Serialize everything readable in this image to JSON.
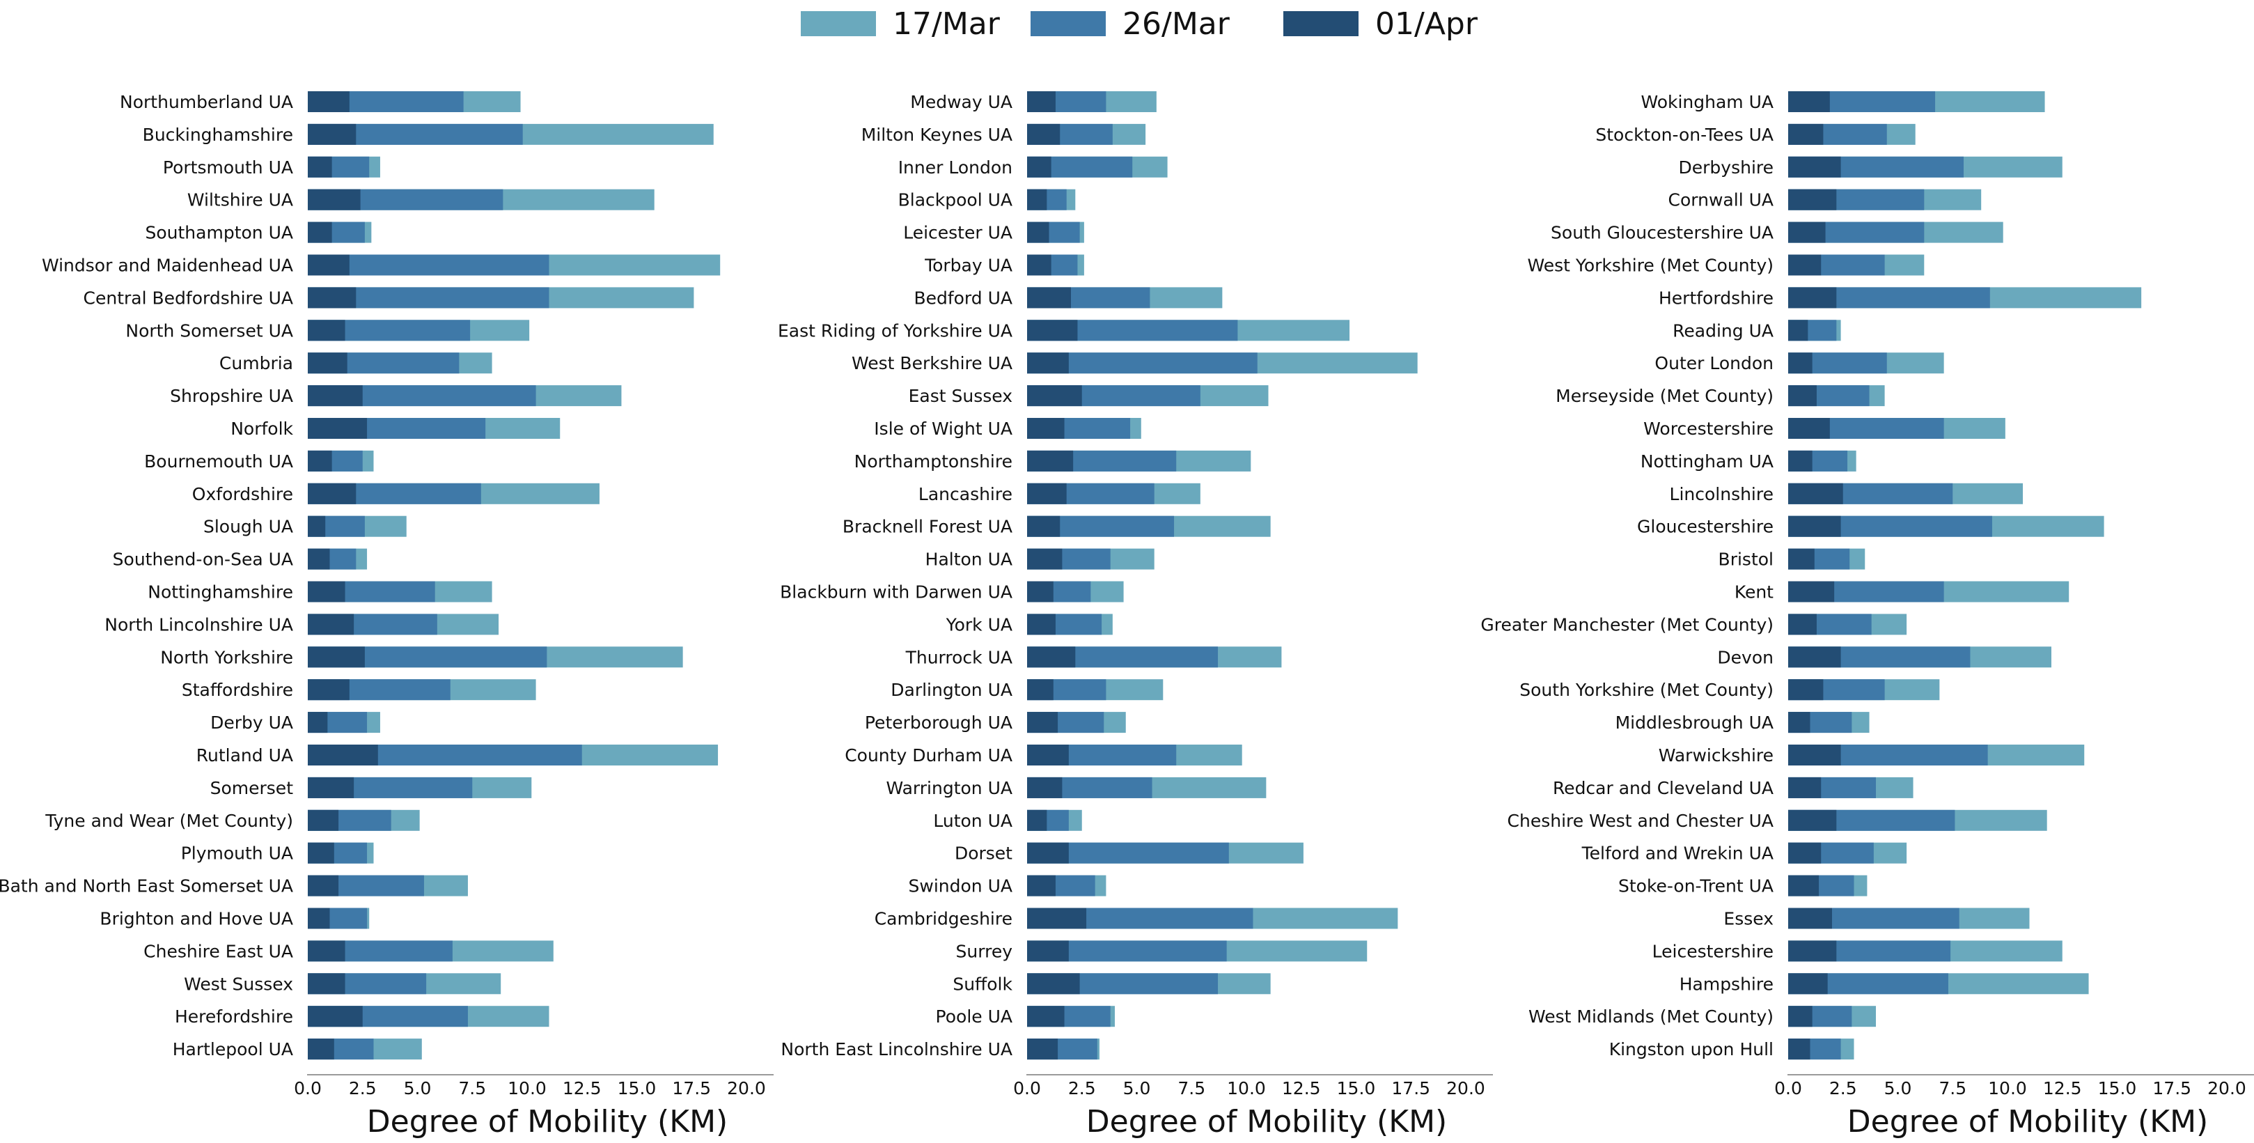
{
  "legend": [
    {
      "label": "17/Mar",
      "color": "#6aa9bd"
    },
    {
      "label": "26/Mar",
      "color": "#3f79a8"
    },
    {
      "label": "01/Apr",
      "color": "#234d74"
    }
  ],
  "chart_data": [
    {
      "type": "bar",
      "orientation": "horizontal",
      "stacked": false,
      "xlabel": "Degree of Mobility (KM)",
      "xlim": [
        0,
        21
      ],
      "xticks": [
        "0.0",
        "2.5",
        "5.0",
        "7.5",
        "10.0",
        "12.5",
        "15.0",
        "17.5",
        "20.0"
      ],
      "categories": [
        "Northumberland UA",
        "Buckinghamshire",
        "Portsmouth UA",
        "Wiltshire UA",
        "Southampton UA",
        "Windsor and Maidenhead UA",
        "Central Bedfordshire UA",
        "North Somerset UA",
        "Cumbria",
        "Shropshire UA",
        "Norfolk",
        "Bournemouth UA",
        "Oxfordshire",
        "Slough UA",
        "Southend-on-Sea UA",
        "Nottinghamshire",
        "North Lincolnshire UA",
        "North Yorkshire",
        "Staffordshire",
        "Derby UA",
        "Rutland UA",
        "Somerset",
        "Tyne and Wear (Met County)",
        "Plymouth UA",
        "Bath and North East Somerset UA",
        "Brighton and Hove UA",
        "Cheshire East UA",
        "West Sussex",
        "Herefordshire",
        "Hartlepool UA"
      ],
      "series": [
        {
          "name": "17/Mar",
          "values": [
            9.7,
            18.5,
            3.3,
            15.8,
            2.9,
            18.8,
            17.6,
            10.1,
            8.4,
            14.3,
            11.5,
            3.0,
            13.3,
            4.5,
            2.7,
            8.4,
            8.7,
            17.1,
            10.4,
            3.3,
            18.7,
            10.2,
            5.1,
            3.0,
            7.3,
            2.8,
            11.2,
            8.8,
            11.0,
            5.2
          ]
        },
        {
          "name": "26/Mar",
          "values": [
            7.1,
            9.8,
            2.8,
            8.9,
            2.6,
            11.0,
            11.0,
            7.4,
            6.9,
            10.4,
            8.1,
            2.5,
            7.9,
            2.6,
            2.2,
            5.8,
            5.9,
            10.9,
            6.5,
            2.7,
            12.5,
            7.5,
            3.8,
            2.7,
            5.3,
            2.7,
            6.6,
            5.4,
            7.3,
            3.0
          ]
        },
        {
          "name": "01/Apr",
          "values": [
            1.9,
            2.2,
            1.1,
            2.4,
            1.1,
            1.9,
            2.2,
            1.7,
            1.8,
            2.5,
            2.7,
            1.1,
            2.2,
            0.8,
            1.0,
            1.7,
            2.1,
            2.6,
            1.9,
            0.9,
            3.2,
            2.1,
            1.4,
            1.2,
            1.4,
            1.0,
            1.7,
            1.7,
            2.5,
            1.2
          ]
        }
      ]
    },
    {
      "type": "bar",
      "orientation": "horizontal",
      "stacked": false,
      "xlabel": "Degree of Mobility (KM)",
      "xlim": [
        0,
        21
      ],
      "xticks": [
        "0.0",
        "2.5",
        "5.0",
        "7.5",
        "10.0",
        "12.5",
        "15.0",
        "17.5",
        "20.0"
      ],
      "categories": [
        "Medway UA",
        "Milton Keynes UA",
        "Inner London",
        "Blackpool UA",
        "Leicester UA",
        "Torbay UA",
        "Bedford UA",
        "East Riding of Yorkshire UA",
        "West Berkshire UA",
        "East Sussex",
        "Isle of Wight UA",
        "Northamptonshire",
        "Lancashire",
        "Bracknell Forest UA",
        "Halton UA",
        "Blackburn with Darwen UA",
        "York UA",
        "Thurrock UA",
        "Darlington UA",
        "Peterborough UA",
        "County Durham UA",
        "Warrington UA",
        "Luton UA",
        "Dorset",
        "Swindon UA",
        "Cambridgeshire",
        "Surrey",
        "Suffolk",
        "Poole UA",
        "North East Lincolnshire UA"
      ],
      "series": [
        {
          "name": "17/Mar",
          "values": [
            5.9,
            5.4,
            6.4,
            2.2,
            2.6,
            2.6,
            8.9,
            14.7,
            17.8,
            11.0,
            5.2,
            10.2,
            7.9,
            11.1,
            5.8,
            4.4,
            3.9,
            11.6,
            6.2,
            4.5,
            9.8,
            10.9,
            2.5,
            12.6,
            3.6,
            16.9,
            15.5,
            11.1,
            4.0,
            3.3
          ]
        },
        {
          "name": "26/Mar",
          "values": [
            3.6,
            3.9,
            4.8,
            1.8,
            2.4,
            2.3,
            5.6,
            9.6,
            10.5,
            7.9,
            4.7,
            6.8,
            5.8,
            6.7,
            3.8,
            2.9,
            3.4,
            8.7,
            3.6,
            3.5,
            6.8,
            5.7,
            1.9,
            9.2,
            3.1,
            10.3,
            9.1,
            8.7,
            3.8,
            3.2
          ]
        },
        {
          "name": "01/Apr",
          "values": [
            1.3,
            1.5,
            1.1,
            0.9,
            1.0,
            1.1,
            2.0,
            2.3,
            1.9,
            2.5,
            1.7,
            2.1,
            1.8,
            1.5,
            1.6,
            1.2,
            1.3,
            2.2,
            1.2,
            1.4,
            1.9,
            1.6,
            0.9,
            1.9,
            1.3,
            2.7,
            1.9,
            2.4,
            1.7,
            1.4
          ]
        }
      ]
    },
    {
      "type": "bar",
      "orientation": "horizontal",
      "stacked": false,
      "xlabel": "Degree of Mobility (KM)",
      "xlim": [
        0,
        21
      ],
      "xticks": [
        "0.0",
        "2.5",
        "5.0",
        "7.5",
        "10.0",
        "12.5",
        "15.0",
        "17.5",
        "20.0"
      ],
      "categories": [
        "Wokingham UA",
        "Stockton-on-Tees UA",
        "Derbyshire",
        "Cornwall UA",
        "South Gloucestershire UA",
        "West Yorkshire (Met County)",
        "Hertfordshire",
        "Reading UA",
        "Outer London",
        "Merseyside (Met County)",
        "Worcestershire",
        "Nottingham UA",
        "Lincolnshire",
        "Gloucestershire",
        "Bristol",
        "Kent",
        "Greater Manchester (Met County)",
        "Devon",
        "South Yorkshire (Met County)",
        "Middlesbrough UA",
        "Warwickshire",
        "Redcar and Cleveland UA",
        "Cheshire West and Chester UA",
        "Telford and Wrekin UA",
        "Stoke-on-Trent UA",
        "Essex",
        "Leicestershire",
        "Hampshire",
        "West Midlands (Met County)",
        "Kingston upon Hull"
      ],
      "series": [
        {
          "name": "17/Mar",
          "values": [
            11.7,
            5.8,
            12.5,
            8.8,
            9.8,
            6.2,
            16.1,
            2.4,
            7.1,
            4.4,
            9.9,
            3.1,
            10.7,
            14.4,
            3.5,
            12.8,
            5.4,
            12.0,
            6.9,
            3.7,
            13.5,
            5.7,
            11.8,
            5.4,
            3.6,
            11.0,
            12.5,
            13.7,
            4.0,
            3.0
          ]
        },
        {
          "name": "26/Mar",
          "values": [
            6.7,
            4.5,
            8.0,
            6.2,
            6.2,
            4.4,
            9.2,
            2.2,
            4.5,
            3.7,
            7.1,
            2.7,
            7.5,
            9.3,
            2.8,
            7.1,
            3.8,
            8.3,
            4.4,
            2.9,
            9.1,
            4.0,
            7.6,
            3.9,
            3.0,
            7.8,
            7.4,
            7.3,
            2.9,
            2.4
          ]
        },
        {
          "name": "01/Apr",
          "values": [
            1.9,
            1.6,
            2.4,
            2.2,
            1.7,
            1.5,
            2.2,
            0.9,
            1.1,
            1.3,
            1.9,
            1.1,
            2.5,
            2.4,
            1.2,
            2.1,
            1.3,
            2.4,
            1.6,
            1.0,
            2.4,
            1.5,
            2.2,
            1.5,
            1.4,
            2.0,
            2.2,
            1.8,
            1.1,
            1.0
          ]
        }
      ]
    }
  ]
}
